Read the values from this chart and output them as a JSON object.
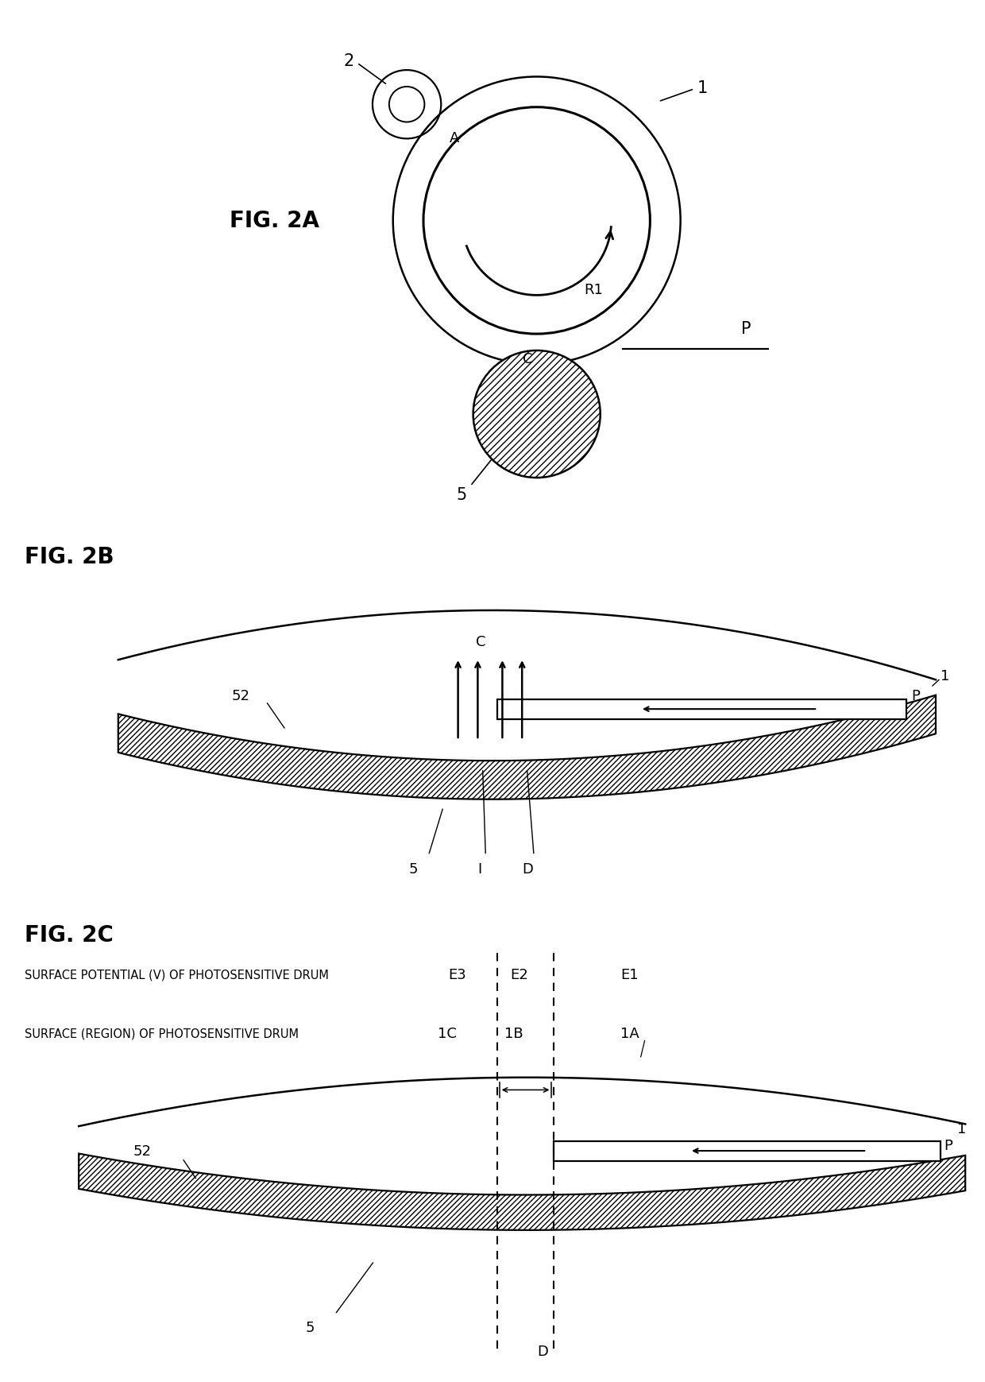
{
  "bg_color": "#ffffff",
  "fig_width": 12.4,
  "fig_height": 17.4,
  "fig2a_label": "FIG. 2A",
  "fig2b_label": "FIG. 2B",
  "fig2c_label": "FIG. 2C",
  "label_1": "1",
  "label_2": "2",
  "label_5": "5",
  "label_52": "52",
  "label_A": "A",
  "label_C": "C",
  "label_R1": "R1",
  "label_P": "P",
  "label_I": "I",
  "label_D": "D",
  "label_1A": "1A",
  "label_1B": "1B",
  "label_1C": "1C",
  "label_E1": "E1",
  "label_E2": "E2",
  "label_E3": "E3",
  "label_surface_potential": "SURFACE POTENTIAL (V) OF PHOTOSENSITIVE DRUM",
  "label_surface_region": "SURFACE (REGION) OF PHOTOSENSITIVE DRUM"
}
